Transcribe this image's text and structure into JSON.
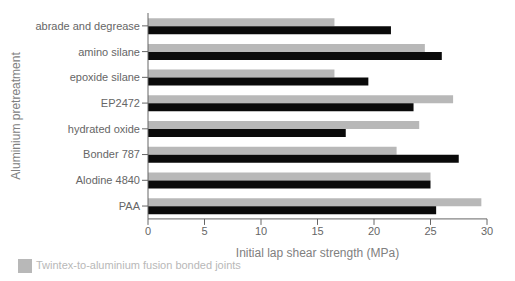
{
  "chart_data": {
    "type": "bar",
    "orientation": "horizontal",
    "categories": [
      "abrade and degrease",
      "amino silane",
      "epoxide silane",
      "EP2472",
      "hydrated oxide",
      "Bonder 787",
      "Alodine 4840",
      "PAA"
    ],
    "series": [
      {
        "name": "Twintex-to-aluminium fusion bonded joints",
        "color": "#b8b8b8",
        "values": [
          16.5,
          24.5,
          16.5,
          27.0,
          24.0,
          22.0,
          25.0,
          29.5
        ]
      },
      {
        "color": "#0a0a0a",
        "values": [
          21.5,
          26.0,
          19.5,
          23.5,
          17.5,
          27.5,
          25.0,
          25.5
        ]
      }
    ],
    "xlabel": "Initial lap shear strength (MPa)",
    "ylabel": "Aluminium pretreatment",
    "xlim": [
      0,
      30
    ],
    "xticks": [
      0,
      5,
      10,
      15,
      20,
      25,
      30
    ],
    "grid": false,
    "legend": "bottom"
  }
}
